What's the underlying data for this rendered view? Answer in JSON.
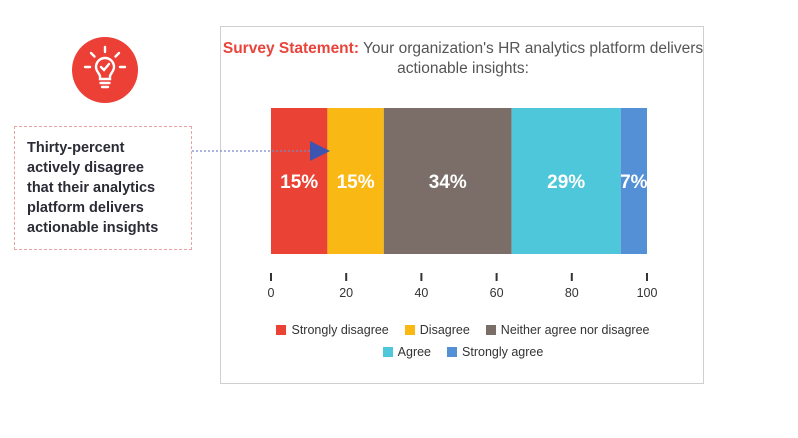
{
  "header": {
    "title_lead": "Survey Statement:",
    "title_rest": "Your organization's HR analytics platform delivers actionable insights:"
  },
  "icon": {
    "name": "lightbulb-icon",
    "color": "#ec3f35"
  },
  "callout": {
    "lines": [
      "Thirty-percent",
      "actively disagree",
      "that their analytics",
      "platform delivers",
      "actionable insights"
    ]
  },
  "chart_data": {
    "type": "bar",
    "orientation": "horizontal-stacked",
    "title": "Survey Statement: Your organization's HR analytics platform delivers actionable insights:",
    "xlim": [
      0,
      100
    ],
    "xticks": [
      0,
      20,
      40,
      60,
      80,
      100
    ],
    "series": [
      {
        "name": "Strongly disagree",
        "value": 15,
        "label": "15%",
        "color": "#ea4335"
      },
      {
        "name": "Disagree",
        "value": 15,
        "label": "15%",
        "color": "#f9b813"
      },
      {
        "name": "Neither agree nor disagree",
        "value": 34,
        "label": "34%",
        "color": "#7b6e69"
      },
      {
        "name": "Agree",
        "value": 29,
        "label": "29%",
        "color": "#4dc7d9"
      },
      {
        "name": "Strongly agree",
        "value": 7,
        "label": "7%",
        "color": "#5390d5"
      }
    ],
    "legend_placement": "bottom"
  }
}
